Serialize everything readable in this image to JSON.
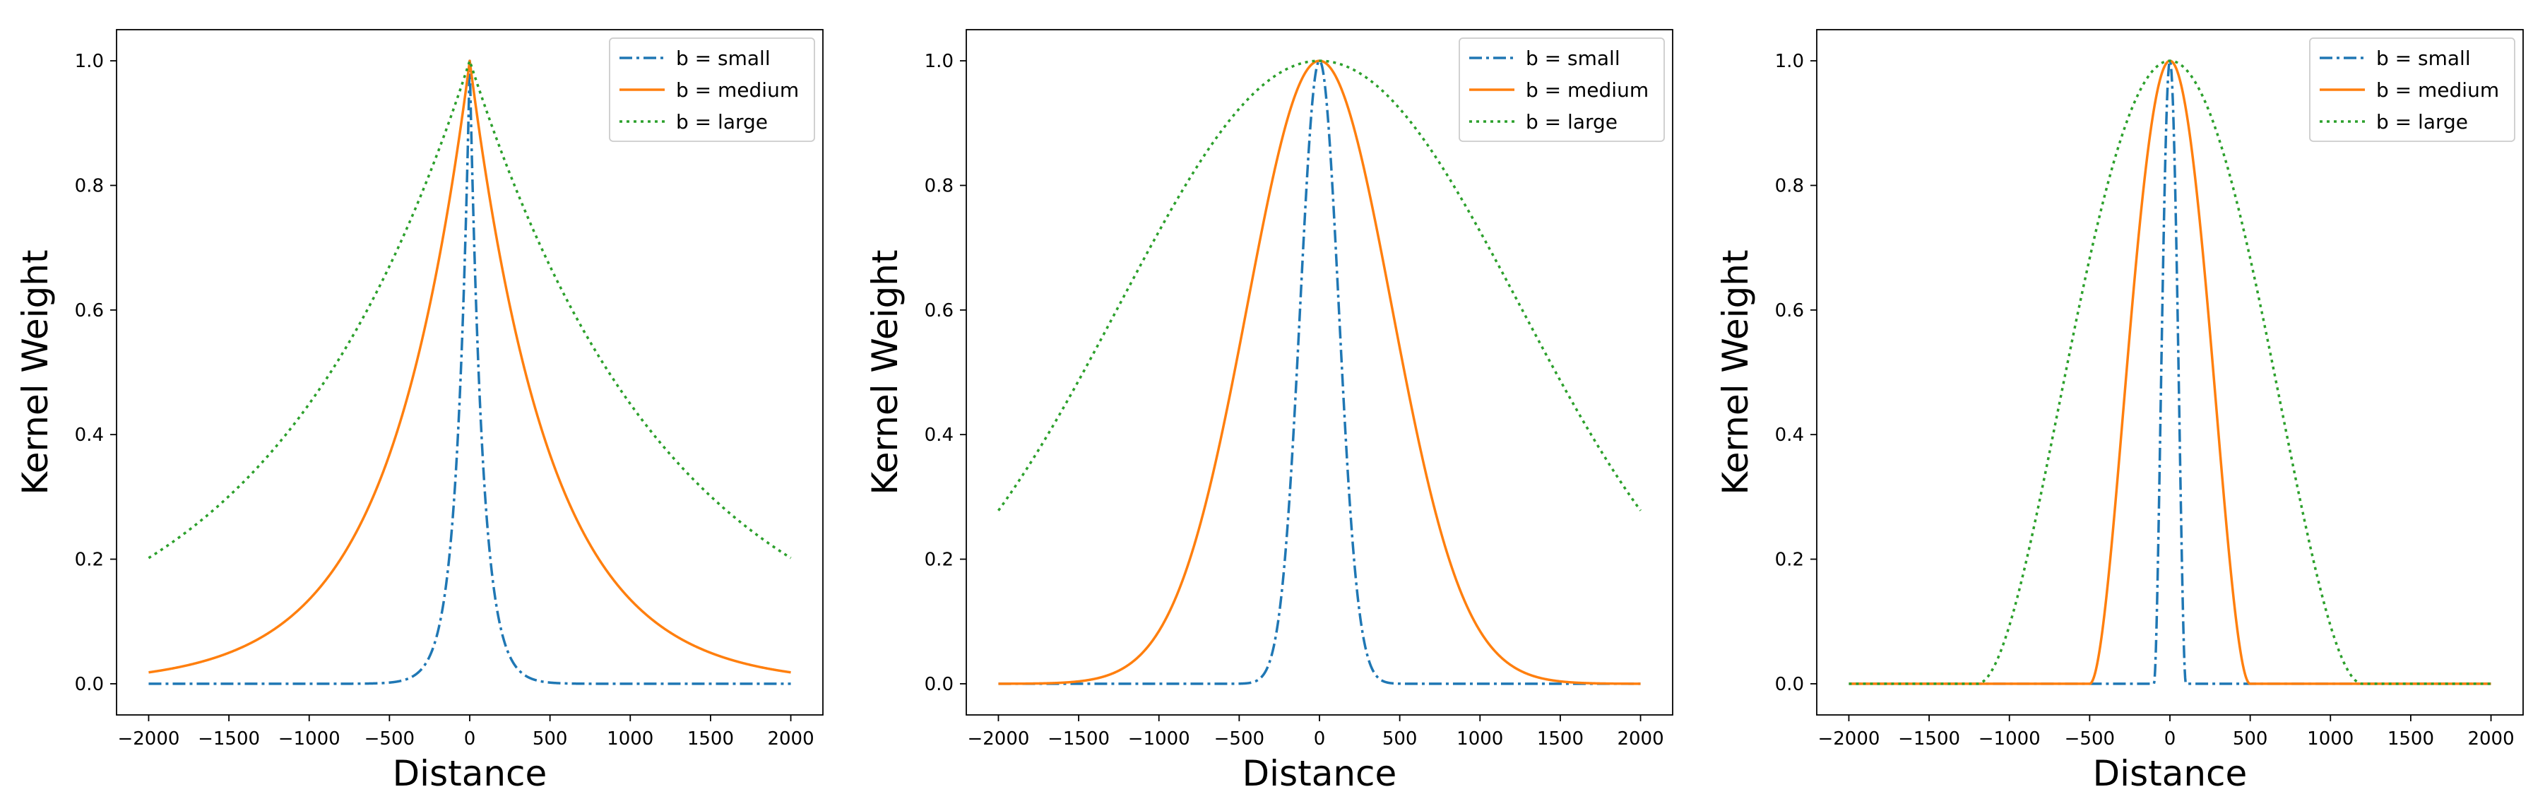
{
  "chart_data": [
    {
      "type": "line",
      "kernel": "exponential",
      "title": "",
      "xlabel": "Distance",
      "ylabel": "Kernel Weight",
      "xlim": [
        -2200,
        2200
      ],
      "ylim": [
        -0.05,
        1.05
      ],
      "xticks": [
        -2000,
        -1500,
        -1000,
        -500,
        0,
        500,
        1000,
        1500,
        2000
      ],
      "xtick_labels": [
        "−2000",
        "−1500",
        "−1000",
        "−500",
        "0",
        "500",
        "1000",
        "1500",
        "2000"
      ],
      "yticks": [
        0.0,
        0.2,
        0.4,
        0.6,
        0.8,
        1.0
      ],
      "ytick_labels": [
        "0.0",
        "0.2",
        "0.4",
        "0.6",
        "0.8",
        "1.0"
      ],
      "grid": false,
      "legend_position": "top-right",
      "x_range": [
        -2000,
        2000
      ],
      "series": [
        {
          "name": "b = small",
          "bandwidth": 80,
          "color": "#1f77b4",
          "linestyle": "dashdot"
        },
        {
          "name": "b = medium",
          "bandwidth": 500,
          "color": "#ff7f0e",
          "linestyle": "solid"
        },
        {
          "name": "b = large",
          "bandwidth": 1250,
          "color": "#2ca02c",
          "linestyle": "dotted"
        }
      ]
    },
    {
      "type": "line",
      "kernel": "gaussian",
      "title": "",
      "xlabel": "Distance",
      "ylabel": "Kernel Weight",
      "xlim": [
        -2200,
        2200
      ],
      "ylim": [
        -0.05,
        1.05
      ],
      "xticks": [
        -2000,
        -1500,
        -1000,
        -500,
        0,
        500,
        1000,
        1500,
        2000
      ],
      "xtick_labels": [
        "−2000",
        "−1500",
        "−1000",
        "−500",
        "0",
        "500",
        "1000",
        "1500",
        "2000"
      ],
      "yticks": [
        0.0,
        0.2,
        0.4,
        0.6,
        0.8,
        1.0
      ],
      "ytick_labels": [
        "0.0",
        "0.2",
        "0.4",
        "0.6",
        "0.8",
        "1.0"
      ],
      "grid": false,
      "legend_position": "top-right",
      "x_range": [
        -2000,
        2000
      ],
      "series": [
        {
          "name": "b = small",
          "bandwidth": 120,
          "color": "#1f77b4",
          "linestyle": "dashdot"
        },
        {
          "name": "b = medium",
          "bandwidth": 450,
          "color": "#ff7f0e",
          "linestyle": "solid"
        },
        {
          "name": "b = large",
          "bandwidth": 1250,
          "color": "#2ca02c",
          "linestyle": "dotted"
        }
      ]
    },
    {
      "type": "line",
      "kernel": "bisquare",
      "title": "",
      "xlabel": "Distance",
      "ylabel": "Kernel Weight",
      "xlim": [
        -2200,
        2200
      ],
      "ylim": [
        -0.05,
        1.05
      ],
      "xticks": [
        -2000,
        -1500,
        -1000,
        -500,
        0,
        500,
        1000,
        1500,
        2000
      ],
      "xtick_labels": [
        "−2000",
        "−1500",
        "−1000",
        "−500",
        "0",
        "500",
        "1000",
        "1500",
        "2000"
      ],
      "yticks": [
        0.0,
        0.2,
        0.4,
        0.6,
        0.8,
        1.0
      ],
      "ytick_labels": [
        "0.0",
        "0.2",
        "0.4",
        "0.6",
        "0.8",
        "1.0"
      ],
      "grid": false,
      "legend_position": "top-right",
      "x_range": [
        -2000,
        2000
      ],
      "series": [
        {
          "name": "b = small",
          "bandwidth": 100,
          "color": "#1f77b4",
          "linestyle": "dashdot"
        },
        {
          "name": "b = medium",
          "bandwidth": 500,
          "color": "#ff7f0e",
          "linestyle": "solid"
        },
        {
          "name": "b = large",
          "bandwidth": 1200,
          "color": "#2ca02c",
          "linestyle": "dotted"
        }
      ]
    }
  ]
}
